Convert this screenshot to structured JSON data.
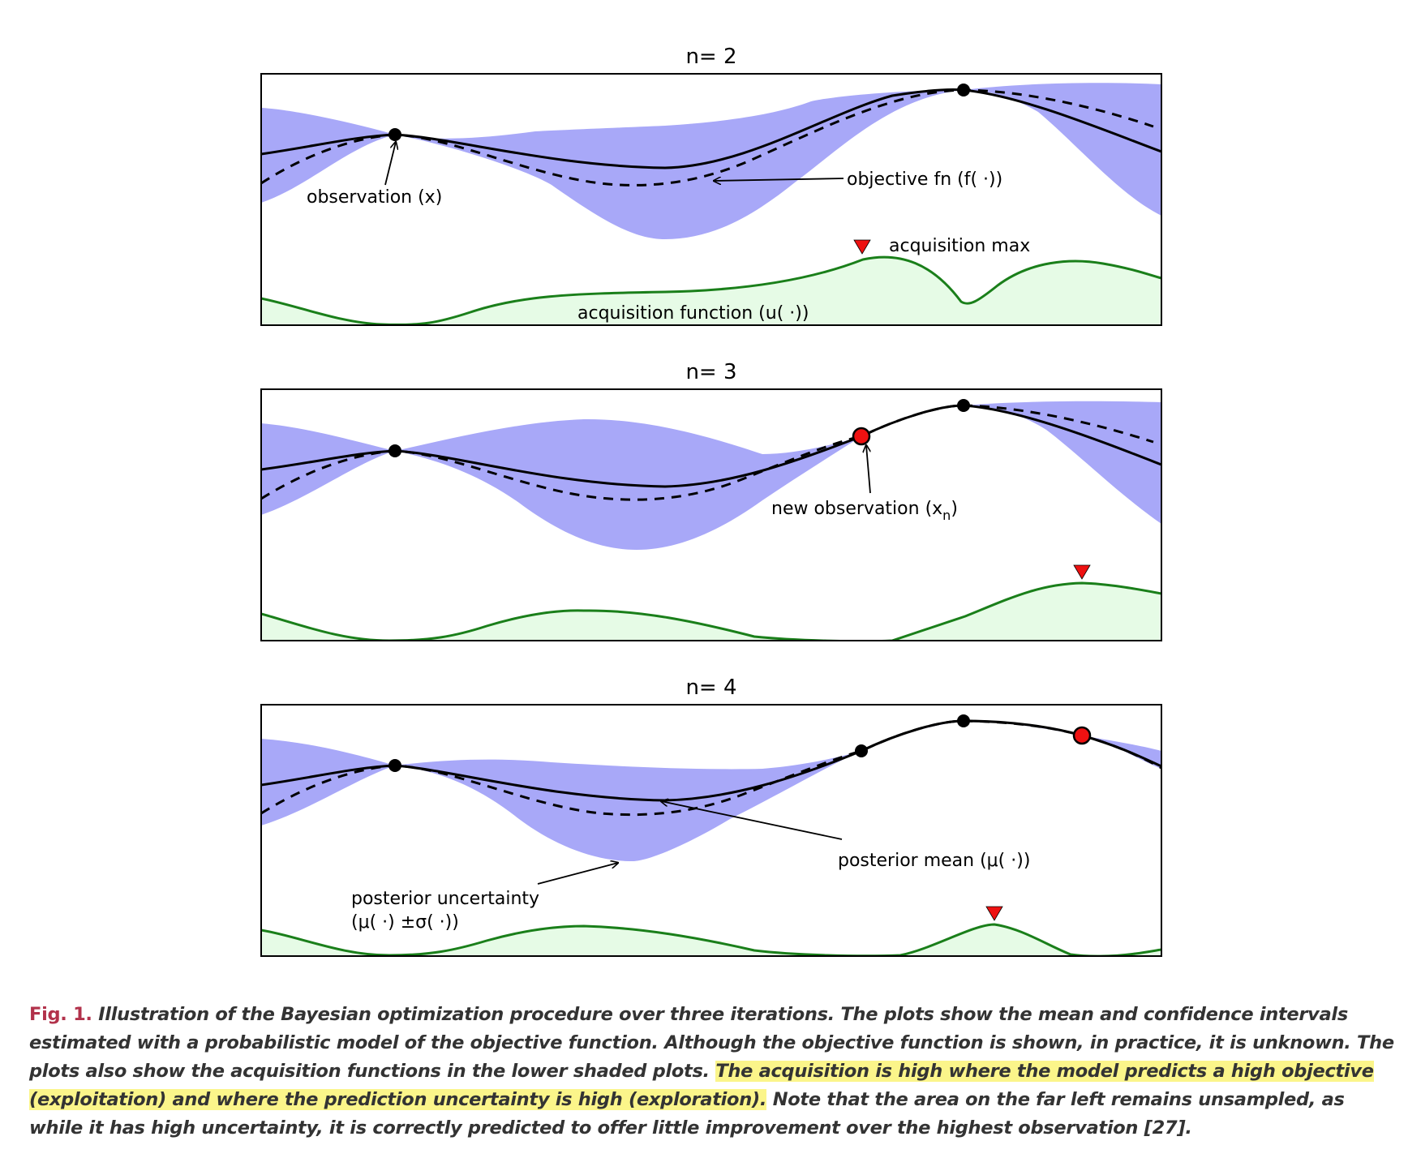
{
  "panels": [
    {
      "title": "n= 2",
      "annotations": {
        "observation": "observation (x)",
        "objective": "objective fn (f( ·))",
        "acq_max": "acquisition max",
        "acq_fn": "acquisition function (u( ·))"
      }
    },
    {
      "title": "n= 3",
      "annotations": {
        "new_obs_prefix": "new observation (x",
        "new_obs_sub": "n",
        "new_obs_suffix": ")"
      }
    },
    {
      "title": "n= 4",
      "annotations": {
        "posterior_mean": "posterior mean (μ( ·))",
        "uncertainty_line1": "posterior uncertainty",
        "uncertainty_line2": "(μ( ·) ±σ( ·))"
      }
    }
  ],
  "caption": {
    "label": "Fig. 1.",
    "text1": " Illustration of the Bayesian optimization procedure over three iterations. The plots show the mean and confidence intervals estimated with a probabilistic model of the objective function. Although the objective function is shown, in practice, it is unknown. The plots also show the acquisition functions in the lower shaded plots. ",
    "highlight": "The acquisition is high where the model predicts a high objective (exploitation) and where the prediction uncertainty is high (exploration).",
    "text2": " Note that the area on the far left remains unsampled, as while it has high uncertainty, it is correctly predicted to offer little improvement over the highest observation [27]."
  },
  "colors": {
    "uncertainty_band": "#a8a8f8",
    "acquisition_line": "#1a7f1a",
    "acquisition_fill": "#e6fbe6",
    "new_observation": "#ee1111",
    "acq_max_marker": "#ee1111",
    "caption_label": "#b2324b",
    "highlight": "#fbf58a"
  }
}
